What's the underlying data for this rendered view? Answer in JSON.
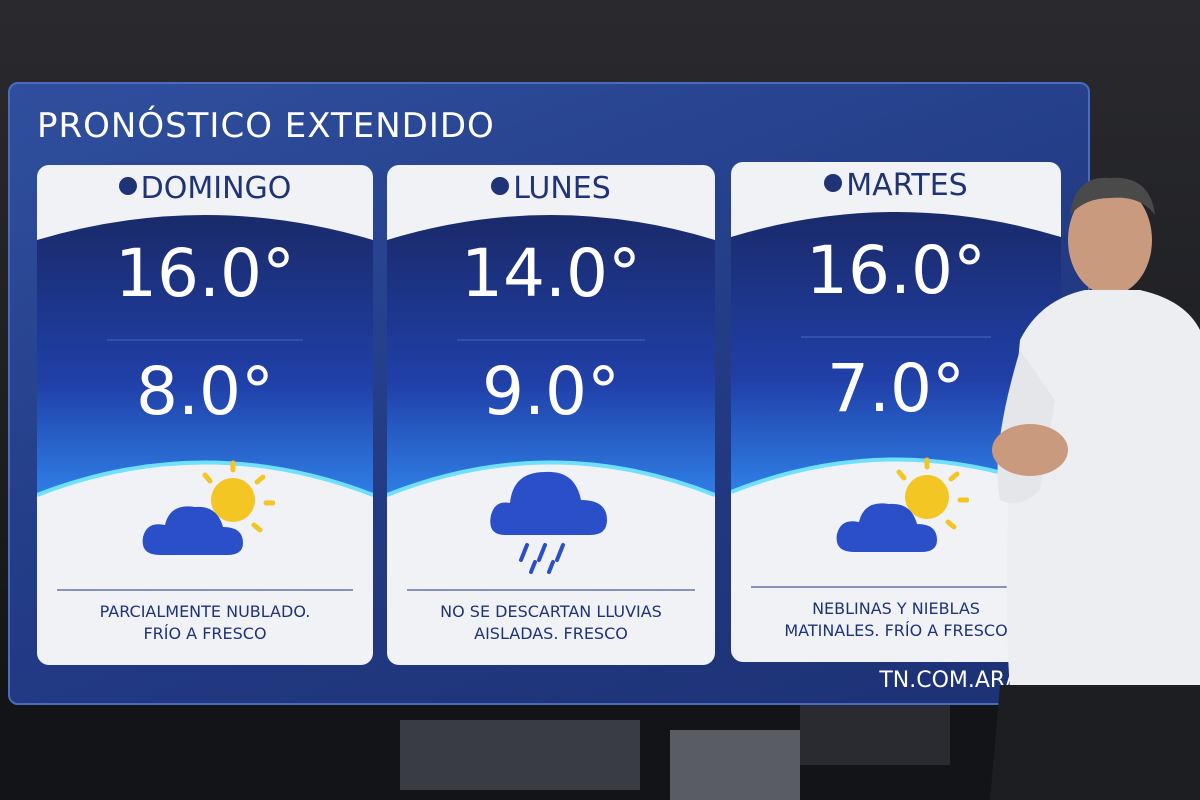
{
  "title": "PRONÓSTICO EXTENDIDO",
  "days": [
    {
      "name": "DOMINGO",
      "max": "16.0°",
      "min": "8.0°",
      "description": [
        "PARCIALMENTE NUBLADO.",
        "FRÍO A FRESCO"
      ]
    },
    {
      "name": "LUNES",
      "max": "14.0°",
      "min": "9.0°",
      "description": [
        "NO SE DESCARTAN LLUVIAS",
        "AISLADAS. FRESCO"
      ]
    },
    {
      "name": "MARTES",
      "max": "16.0°",
      "min": "7.0°",
      "description": [
        "NEBLINAS Y NIEBLAS",
        "MATINALES. FRÍO A FRESCO"
      ]
    }
  ],
  "website": "TN.COM.AR/C"
}
